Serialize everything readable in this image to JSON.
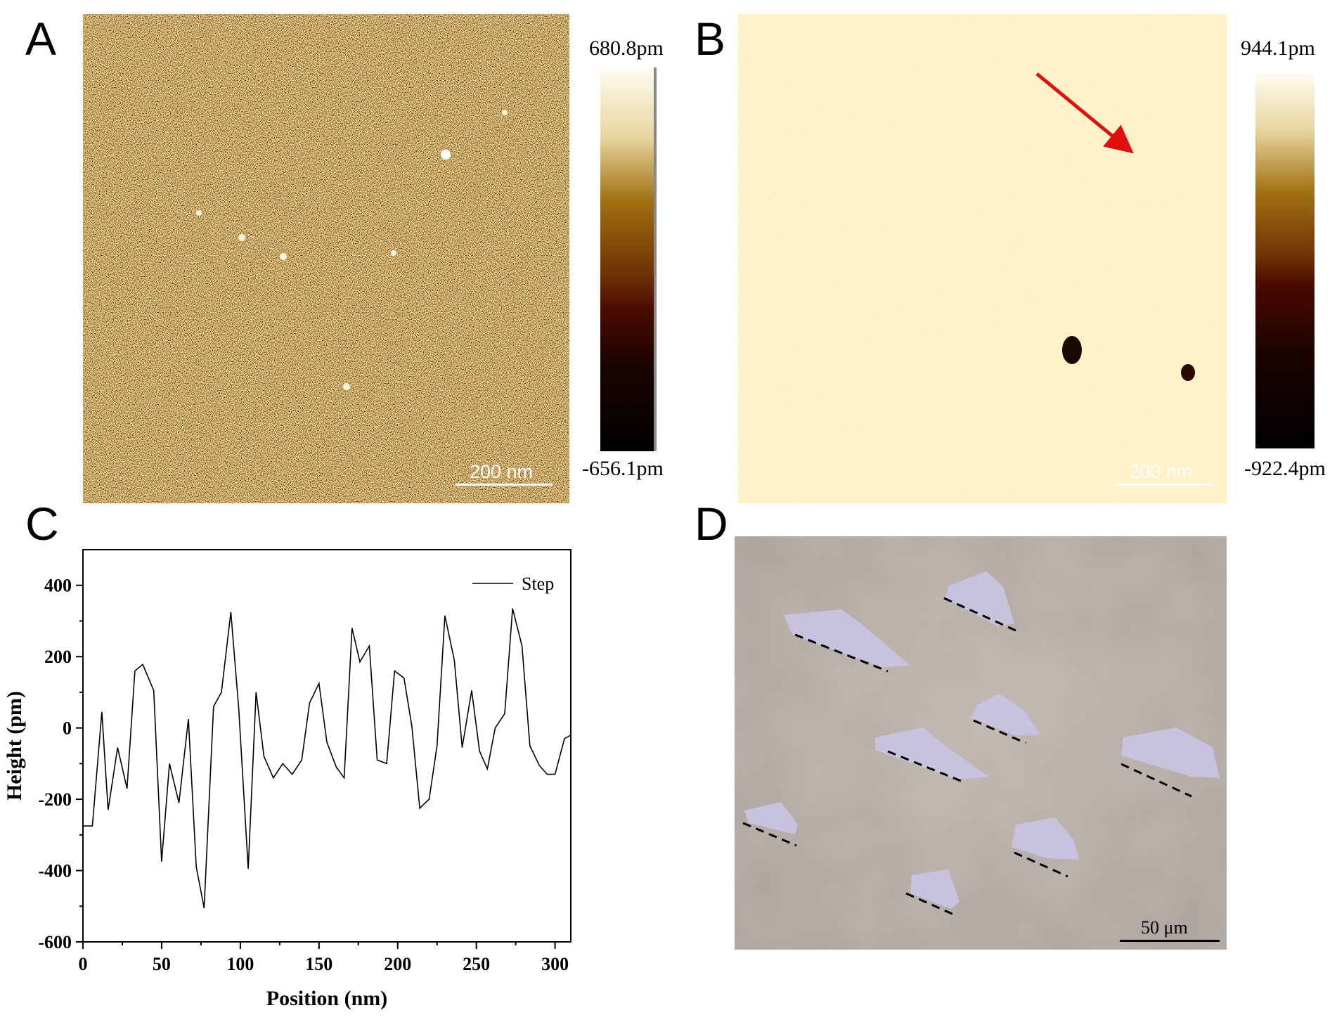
{
  "panels": {
    "A": {
      "letter": "A",
      "colorbar_max": "680.8pm",
      "colorbar_min": "-656.1pm",
      "scalebar": "200 nm"
    },
    "B": {
      "letter": "B",
      "colorbar_max": "944.1pm",
      "colorbar_min": "-922.4pm",
      "scalebar": "200 nm",
      "arrow_color": "#e01010"
    },
    "C": {
      "letter": "C"
    },
    "D": {
      "letter": "D",
      "scalebar": "50 μm"
    }
  },
  "colors": {
    "afm_dark": "#1a0600",
    "afm_mid": "#7a3c08",
    "afm_gold": "#c58a2a",
    "afm_light": "#fff8e6",
    "micro_bg": "#b3aaa4",
    "flake": "#c8c2e0"
  },
  "chart_data": {
    "type": "line",
    "xlabel": "Position (nm)",
    "ylabel": "Height (pm)",
    "xlim": [
      0,
      310
    ],
    "ylim": [
      -600,
      500
    ],
    "xticks": [
      0,
      50,
      100,
      150,
      200,
      250,
      300
    ],
    "yticks": [
      400,
      200,
      0,
      -200,
      -400,
      -600
    ],
    "legend": "top-right",
    "series": [
      {
        "name": "Step",
        "x": [
          0,
          6,
          12,
          16,
          22,
          28,
          33,
          38,
          45,
          50,
          55,
          61,
          67,
          72,
          77,
          83,
          88,
          94,
          99,
          105,
          110,
          115,
          121,
          127,
          133,
          139,
          144,
          150,
          155,
          161,
          166,
          171,
          176,
          182,
          187,
          193,
          198,
          204,
          209,
          214,
          220,
          225,
          230,
          236,
          241,
          247,
          252,
          257,
          262,
          268,
          273,
          279,
          284,
          290,
          295,
          300,
          306,
          310
        ],
        "y": [
          -275,
          -275,
          45,
          -230,
          -55,
          -170,
          160,
          178,
          105,
          -375,
          -100,
          -210,
          25,
          -390,
          -505,
          60,
          100,
          325,
          55,
          -395,
          100,
          -80,
          -140,
          -100,
          -130,
          -90,
          70,
          125,
          -40,
          -110,
          -140,
          280,
          185,
          230,
          -90,
          -100,
          160,
          140,
          5,
          -225,
          -200,
          -50,
          315,
          190,
          -55,
          105,
          -65,
          -115,
          0,
          40,
          335,
          230,
          -50,
          -105,
          -130,
          -130,
          -30,
          -20
        ]
      }
    ]
  }
}
